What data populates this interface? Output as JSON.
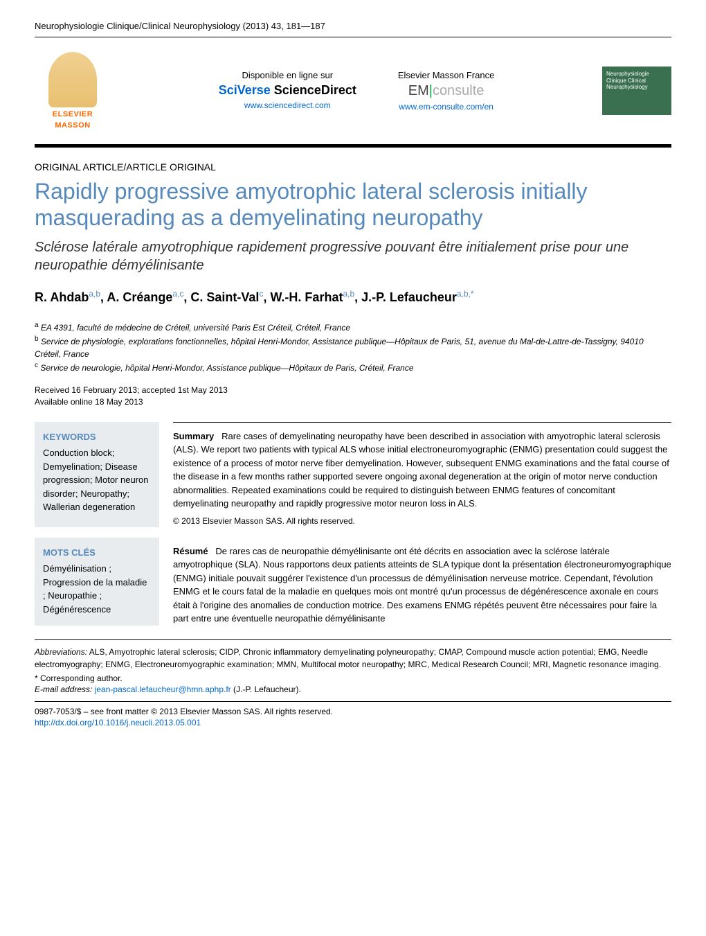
{
  "journal_header": "Neurophysiologie Clinique/Clinical Neurophysiology (2013) 43, 181—187",
  "header": {
    "elsevier": "ELSEVIER",
    "masson": "MASSON",
    "disponible": "Disponible en ligne sur",
    "sciverse": "SciVerse",
    "sciencedirect": "ScienceDirect",
    "sd_url": "www.sciencedirect.com",
    "elsevier_masson": "Elsevier Masson France",
    "em": "EM",
    "consulte": "consulte",
    "em_url": "www.em-consulte.com/en",
    "cover_text": "Neurophysiologie Clinique Clinical Neurophysiology"
  },
  "article_type": "ORIGINAL ARTICLE/ARTICLE ORIGINAL",
  "title_en": "Rapidly progressive amyotrophic lateral sclerosis initially masquerading as a demyelinating neuropathy",
  "title_fr": "Sclérose latérale amyotrophique rapidement progressive pouvant être initialement prise pour une neuropathie démyélinisante",
  "authors_html": "R. Ahdab<sup>a,b</sup>, A. Créange<sup>a,c</sup>, C. Saint-Val<sup>c</sup>, W.-H. Farhat<sup>a,b</sup>, J.-P. Lefaucheur<sup>a,b,*</sup>",
  "affiliations": {
    "a": "EA 4391, faculté de médecine de Créteil, université Paris Est Créteil, Créteil, France",
    "b": "Service de physiologie, explorations fonctionnelles, hôpital Henri-Mondor, Assistance publique—Hôpitaux de Paris, 51, avenue du Mal-de-Lattre-de-Tassigny, 94010 Créteil, France",
    "c": "Service de neurologie, hôpital Henri-Mondor, Assistance publique—Hôpitaux de Paris, Créteil, France"
  },
  "dates": {
    "received": "Received 16 February 2013; accepted 1st May 2013",
    "online": "Available online 18 May 2013"
  },
  "keywords_en": {
    "heading": "KEYWORDS",
    "text": "Conduction block; Demyelination; Disease progression; Motor neuron disorder; Neuropathy; Wallerian degeneration"
  },
  "keywords_fr": {
    "heading": "MOTS CLÉS",
    "text": "Démyélinisation ; Progression de la maladie ; Neuropathie ; Dégénérescence"
  },
  "summary": {
    "label": "Summary",
    "text": "Rare cases of demyelinating neuropathy have been described in association with amyotrophic lateral sclerosis (ALS). We report two patients with typical ALS whose initial electroneuromyographic (ENMG) presentation could suggest the existence of a process of motor nerve fiber demyelination. However, subsequent ENMG examinations and the fatal course of the disease in a few months rather supported severe ongoing axonal degeneration at the origin of motor nerve conduction abnormalities. Repeated examinations could be required to distinguish between ENMG features of concomitant demyelinating neuropathy and rapidly progressive motor neuron loss in ALS.",
    "copyright": "© 2013 Elsevier Masson SAS. All rights reserved."
  },
  "resume": {
    "label": "Résumé",
    "text": "De rares cas de neuropathie démyélinisante ont été décrits en association avec la sclérose latérale amyotrophique (SLA). Nous rapportons deux patients atteints de SLA typique dont la présentation électroneuromyographique (ENMG) initiale pouvait suggérer l'existence d'un processus de démyélinisation nerveuse motrice. Cependant, l'évolution ENMG et le cours fatal de la maladie en quelques mois ont montré qu'un processus de dégénérescence axonale en cours était à l'origine des anomalies de conduction motrice. Des examens ENMG répétés peuvent être nécessaires pour faire la part entre une éventuelle neuropathie démyélinisante"
  },
  "abbreviations": {
    "label": "Abbreviations:",
    "text": "ALS, Amyotrophic lateral sclerosis; CIDP, Chronic inflammatory demyelinating polyneuropathy; CMAP, Compound muscle action potential; EMG, Needle electromyography; ENMG, Electroneuromyographic examination; MMN, Multifocal motor neuropathy; MRC, Medical Research Council; MRI, Magnetic resonance imaging."
  },
  "corresponding": "* Corresponding author.",
  "email": {
    "label": "E-mail address:",
    "address": "jean-pascal.lefaucheur@hmn.aphp.fr",
    "suffix": "(J.-P. Lefaucheur)."
  },
  "bottom": {
    "issn": "0987-7053/$ – see front matter © 2013 Elsevier Masson SAS. All rights reserved.",
    "doi": "http://dx.doi.org/10.1016/j.neucli.2013.05.001"
  }
}
